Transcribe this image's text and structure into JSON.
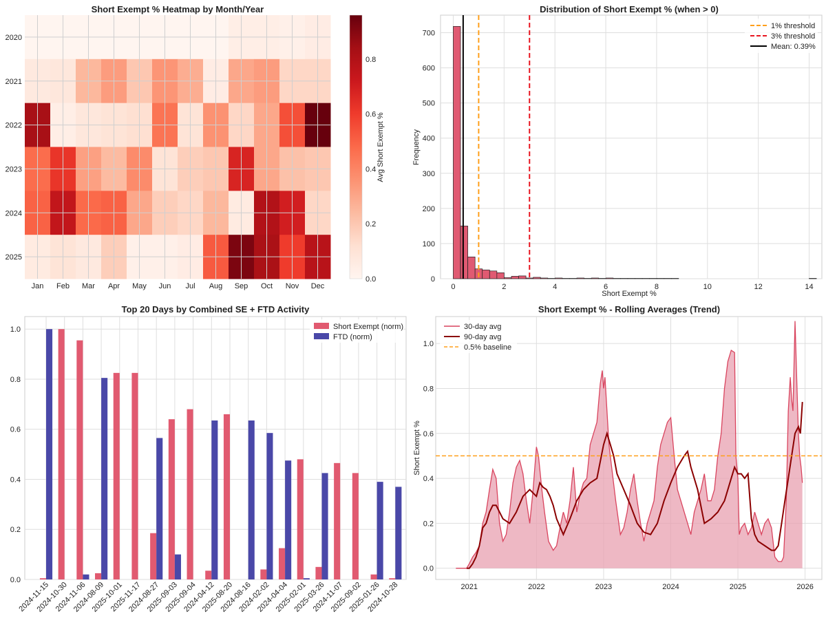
{
  "chart_data": [
    {
      "type": "heatmap",
      "title": "Short Exempt % Heatmap by Month/Year",
      "xlabel": "",
      "ylabel": "",
      "months": [
        "Jan",
        "Feb",
        "Mar",
        "Apr",
        "May",
        "Jun",
        "Jul",
        "Aug",
        "Sep",
        "Oct",
        "Nov",
        "Dec"
      ],
      "years": [
        "2020",
        "2021",
        "2022",
        "2023",
        "2024",
        "2025"
      ],
      "values": [
        [
          0,
          0,
          0,
          0,
          0,
          0,
          0,
          0,
          0.04,
          0.04,
          0.03,
          0.05
        ],
        [
          0.07,
          0.08,
          0.25,
          0.33,
          0.2,
          0.35,
          0.28,
          0.05,
          0.3,
          0.33,
          0.15,
          0.15
        ],
        [
          0.83,
          0.04,
          0.08,
          0.1,
          0.12,
          0.45,
          0.1,
          0.36,
          0.15,
          0.3,
          0.55,
          0.98
        ],
        [
          0.47,
          0.62,
          0.32,
          0.24,
          0.38,
          0.1,
          0.18,
          0.2,
          0.68,
          0.3,
          0.22,
          0.2
        ],
        [
          0.5,
          0.75,
          0.48,
          0.5,
          0.3,
          0.18,
          0.15,
          0.25,
          0.06,
          0.8,
          0.7,
          0.15
        ],
        [
          0.06,
          0.1,
          0.07,
          0.18,
          0.03,
          0.03,
          0.05,
          0.52,
          0.92,
          0.82,
          0.6,
          0.78
        ]
      ],
      "colorbar": {
        "label": "Avg Short Exempt %",
        "range": [
          0,
          0.96
        ],
        "ticks": [
          "0.0",
          "0.2",
          "0.4",
          "0.6",
          "0.8"
        ]
      }
    },
    {
      "type": "bar",
      "title": "Distribution of Short Exempt % (when > 0)",
      "xlabel": "Short Exempt %",
      "ylabel": "Frequency",
      "xlim": [
        -0.5,
        14.5
      ],
      "ylim": [
        0,
        750
      ],
      "bin_width": 0.286,
      "bin_start": 0,
      "counts": [
        718,
        150,
        62,
        28,
        25,
        22,
        17,
        3,
        7,
        8,
        2,
        4,
        2,
        1,
        2,
        1,
        1,
        2,
        1,
        2,
        1,
        2,
        1,
        1,
        1,
        1,
        1,
        1,
        1,
        1,
        1,
        1
      ],
      "xticks": [
        "0",
        "2",
        "4",
        "6",
        "8",
        "10",
        "12",
        "14"
      ],
      "yticks": [
        "0",
        "100",
        "200",
        "300",
        "400",
        "500",
        "600",
        "700"
      ],
      "lines": [
        {
          "label": "1% threshold",
          "x": 1,
          "color": "#ff9f1a"
        },
        {
          "label": "3% threshold",
          "x": 3,
          "color": "#e8141e"
        },
        {
          "label": "Mean: 0.39%",
          "x": 0.39,
          "color": "#000000"
        }
      ]
    },
    {
      "type": "bar",
      "title": "Top 20 Days by Combined SE + FTD Activity",
      "xlabel": "",
      "ylabel": "",
      "ylim": [
        0,
        1.05
      ],
      "categories": [
        "2024-11-15",
        "2024-10-30",
        "2024-11-06",
        "2024-08-09",
        "2025-10-01",
        "2025-11-17",
        "2024-08-27",
        "2025-09-03",
        "2025-09-04",
        "2024-04-12",
        "2025-08-20",
        "2024-08-16",
        "2024-02-02",
        "2024-04-04",
        "2025-02-01",
        "2025-03-26",
        "2024-11-07",
        "2025-09-02",
        "2025-01-26",
        "2024-10-28"
      ],
      "series": [
        {
          "name": "Short Exempt (norm)",
          "color": "#e15a70",
          "values": [
            0.005,
            1.0,
            0.955,
            0.025,
            0.825,
            0.825,
            0.185,
            0.64,
            0.68,
            0.035,
            0.66,
            0.0,
            0.04,
            0.125,
            0.48,
            0.05,
            0.465,
            0.425,
            0.02,
            0.005
          ]
        },
        {
          "name": "FTD (norm)",
          "color": "#4a48a8",
          "values": [
            1.0,
            0.0,
            0.02,
            0.805,
            0.0,
            0.0,
            0.565,
            0.1,
            0.0,
            0.635,
            0.0,
            0.635,
            0.585,
            0.475,
            0.005,
            0.425,
            0.0,
            0.0,
            0.39,
            0.37
          ]
        }
      ],
      "yticks": [
        "0.0",
        "0.2",
        "0.4",
        "0.6",
        "0.8",
        "1.0"
      ]
    },
    {
      "type": "line",
      "title": "Short Exempt % - Rolling Averages (Trend)",
      "xlabel": "",
      "ylabel": "Short Exempt %",
      "xlim": [
        2020.5,
        2026.25
      ],
      "ylim": [
        -0.05,
        1.12
      ],
      "xticks": [
        "2021",
        "2022",
        "2023",
        "2024",
        "2025",
        "2026"
      ],
      "yticks": [
        "0.0",
        "0.2",
        "0.4",
        "0.6",
        "0.8",
        "1.0"
      ],
      "baseline": {
        "label": "0.5% baseline",
        "value": 0.5,
        "color": "#ff9f1a"
      },
      "series": [
        {
          "name": "30-day avg",
          "color": "#d9445e",
          "x": [
            2020.8,
            2020.96,
            2021.0,
            2021.05,
            2021.1,
            2021.15,
            2021.2,
            2021.25,
            2021.3,
            2021.35,
            2021.4,
            2021.45,
            2021.5,
            2021.55,
            2021.6,
            2021.65,
            2021.7,
            2021.75,
            2021.8,
            2021.85,
            2021.9,
            2021.95,
            2022.0,
            2022.03,
            2022.08,
            2022.12,
            2022.18,
            2022.25,
            2022.3,
            2022.35,
            2022.4,
            2022.45,
            2022.5,
            2022.55,
            2022.6,
            2022.65,
            2022.7,
            2022.75,
            2022.8,
            2022.85,
            2022.9,
            2022.95,
            2022.98,
            2023.0,
            2023.02,
            2023.05,
            2023.08,
            2023.12,
            2023.18,
            2023.25,
            2023.3,
            2023.35,
            2023.4,
            2023.45,
            2023.5,
            2023.55,
            2023.6,
            2023.65,
            2023.7,
            2023.75,
            2023.8,
            2023.85,
            2023.9,
            2023.95,
            2024.0,
            2024.05,
            2024.1,
            2024.15,
            2024.2,
            2024.25,
            2024.3,
            2024.35,
            2024.4,
            2024.45,
            2024.5,
            2024.55,
            2024.6,
            2024.65,
            2024.7,
            2024.75,
            2024.8,
            2024.85,
            2024.9,
            2024.95,
            2024.97,
            2025.0,
            2025.02,
            2025.05,
            2025.1,
            2025.15,
            2025.2,
            2025.25,
            2025.3,
            2025.35,
            2025.4,
            2025.45,
            2025.5,
            2025.55,
            2025.6,
            2025.65,
            2025.68,
            2025.72,
            2025.75,
            2025.78,
            2025.8,
            2025.82,
            2025.85,
            2025.88,
            2025.9,
            2025.92,
            2025.94,
            2025.96
          ],
          "y": [
            0.0,
            0.0,
            0.02,
            0.05,
            0.07,
            0.1,
            0.2,
            0.25,
            0.35,
            0.44,
            0.4,
            0.2,
            0.12,
            0.15,
            0.25,
            0.38,
            0.45,
            0.48,
            0.42,
            0.3,
            0.2,
            0.35,
            0.54,
            0.5,
            0.35,
            0.25,
            0.12,
            0.08,
            0.1,
            0.18,
            0.25,
            0.2,
            0.3,
            0.45,
            0.25,
            0.33,
            0.38,
            0.4,
            0.55,
            0.6,
            0.65,
            0.82,
            0.88,
            0.8,
            0.85,
            0.7,
            0.55,
            0.45,
            0.3,
            0.15,
            0.18,
            0.25,
            0.35,
            0.42,
            0.3,
            0.2,
            0.12,
            0.2,
            0.25,
            0.3,
            0.45,
            0.55,
            0.6,
            0.65,
            0.67,
            0.5,
            0.35,
            0.3,
            0.25,
            0.2,
            0.15,
            0.25,
            0.3,
            0.35,
            0.42,
            0.3,
            0.3,
            0.35,
            0.5,
            0.6,
            0.8,
            0.92,
            0.97,
            0.96,
            0.5,
            0.4,
            0.15,
            0.18,
            0.2,
            0.15,
            0.18,
            0.25,
            0.2,
            0.15,
            0.2,
            0.22,
            0.18,
            0.05,
            0.03,
            0.03,
            0.05,
            0.3,
            0.7,
            0.85,
            0.75,
            0.7,
            1.1,
            0.8,
            0.6,
            0.5,
            0.45,
            0.38
          ]
        },
        {
          "name": "90-day avg",
          "color": "#8b0000",
          "x": [
            2020.96,
            2021.0,
            2021.05,
            2021.1,
            2021.15,
            2021.2,
            2021.25,
            2021.3,
            2021.35,
            2021.4,
            2021.5,
            2021.6,
            2021.7,
            2021.8,
            2021.9,
            2022.0,
            2022.05,
            2022.1,
            2022.15,
            2022.2,
            2022.25,
            2022.3,
            2022.4,
            2022.5,
            2022.6,
            2022.7,
            2022.8,
            2022.9,
            2023.0,
            2023.05,
            2023.1,
            2023.15,
            2023.2,
            2023.3,
            2023.4,
            2023.5,
            2023.6,
            2023.7,
            2023.8,
            2023.9,
            2024.0,
            2024.1,
            2024.2,
            2024.25,
            2024.3,
            2024.4,
            2024.5,
            2024.6,
            2024.7,
            2024.8,
            2024.85,
            2024.9,
            2024.95,
            2025.0,
            2025.05,
            2025.1,
            2025.15,
            2025.2,
            2025.25,
            2025.3,
            2025.4,
            2025.5,
            2025.55,
            2025.6,
            2025.65,
            2025.7,
            2025.75,
            2025.8,
            2025.85,
            2025.9,
            2025.93,
            2025.96
          ],
          "y": [
            0.0,
            0.0,
            0.02,
            0.05,
            0.1,
            0.18,
            0.2,
            0.25,
            0.28,
            0.28,
            0.22,
            0.2,
            0.25,
            0.32,
            0.35,
            0.32,
            0.38,
            0.36,
            0.35,
            0.32,
            0.28,
            0.22,
            0.15,
            0.22,
            0.3,
            0.35,
            0.38,
            0.4,
            0.55,
            0.6,
            0.55,
            0.5,
            0.42,
            0.35,
            0.28,
            0.2,
            0.16,
            0.15,
            0.2,
            0.3,
            0.38,
            0.45,
            0.5,
            0.52,
            0.45,
            0.35,
            0.2,
            0.22,
            0.25,
            0.3,
            0.35,
            0.4,
            0.45,
            0.42,
            0.42,
            0.4,
            0.42,
            0.22,
            0.15,
            0.12,
            0.1,
            0.08,
            0.08,
            0.1,
            0.2,
            0.3,
            0.4,
            0.5,
            0.6,
            0.63,
            0.6,
            0.74
          ]
        }
      ]
    }
  ]
}
